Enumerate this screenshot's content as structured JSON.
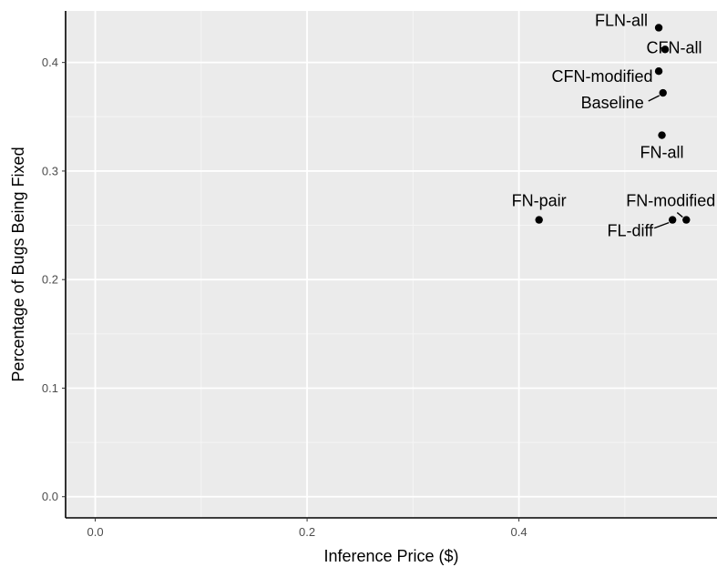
{
  "chart_data": {
    "type": "scatter",
    "xlabel": "Inference Price ($)",
    "ylabel": "Percentage of Bugs Being Fixed",
    "xlim": [
      -0.028,
      0.587
    ],
    "ylim": [
      -0.0195,
      0.4475
    ],
    "x_ticks": [
      0.0,
      0.2,
      0.4
    ],
    "x_tick_labels": [
      "0.0",
      "0.2",
      "0.4"
    ],
    "y_ticks": [
      0.0,
      0.1,
      0.2,
      0.3,
      0.4
    ],
    "y_tick_labels": [
      "0.0",
      "0.1",
      "0.2",
      "0.3",
      "0.4"
    ],
    "grid": true,
    "points": [
      {
        "label": "FLN-all",
        "x": 0.532,
        "y": 0.432
      },
      {
        "label": "CFN-all",
        "x": 0.538,
        "y": 0.412
      },
      {
        "label": "CFN-modified",
        "x": 0.532,
        "y": 0.392
      },
      {
        "label": "Baseline",
        "x": 0.536,
        "y": 0.372
      },
      {
        "label": "FN-all",
        "x": 0.535,
        "y": 0.333
      },
      {
        "label": "FN-pair",
        "x": 0.419,
        "y": 0.255
      },
      {
        "label": "FN-modified",
        "x": 0.558,
        "y": 0.255
      },
      {
        "label": "FL-diff",
        "x": 0.545,
        "y": 0.255
      }
    ],
    "colors": {
      "panel_background": "#ebebeb",
      "grid_major": "#ffffff",
      "grid_minor": "#f5f5f5",
      "point": "#000000",
      "axis_line": "#000000"
    }
  }
}
